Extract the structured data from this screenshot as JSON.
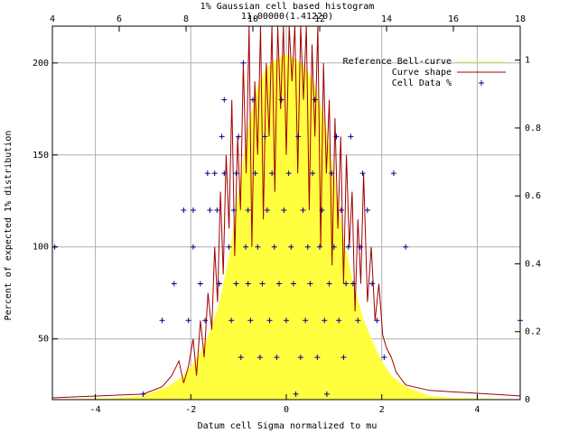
{
  "chart_data": {
    "type": "bar",
    "title": "1% Gaussian cell based histogram",
    "subtitle": "11.00000(1.41220)",
    "xlabel": "Datum cell Sigma normalized to mu",
    "ylabel": "Percent of expected 1% distribution",
    "x_range": [
      -4.9,
      4.9
    ],
    "x_ticks": [
      -4,
      -2,
      0,
      2,
      4
    ],
    "x_tick_labels": [
      "-4",
      "-2",
      "0",
      "2",
      "4"
    ],
    "y_range": [
      17,
      220
    ],
    "y_ticks": [
      50,
      100,
      150,
      200
    ],
    "y_tick_labels": [
      "50",
      "100",
      "150",
      "200"
    ],
    "x2_range": [
      4,
      18
    ],
    "x2_ticks": [
      4,
      6,
      8,
      10,
      12,
      14,
      16,
      18
    ],
    "x2_tick_labels": [
      "4",
      "6",
      "8",
      "10",
      "12",
      "14",
      "16",
      "18"
    ],
    "y2_range": [
      0,
      1.1
    ],
    "y2_ticks": [
      0,
      0.2,
      0.4,
      0.6,
      0.8,
      1
    ],
    "y2_tick_labels": [
      "0",
      "0.2",
      "0.4",
      "0.6",
      "0.8",
      "1"
    ],
    "grid": true,
    "legend_position": "top-right",
    "legend": [
      {
        "name": "Reference Bell-curve",
        "color": "#ffff40",
        "style": "area"
      },
      {
        "name": "Curve shape",
        "color": "#a00000",
        "style": "line"
      },
      {
        "name": "Cell Data %",
        "color": "#000090",
        "style": "plus"
      }
    ],
    "series": [
      {
        "name": "Reference Bell-curve",
        "style": "area",
        "x": [
          -4.9,
          -3.5,
          -3.0,
          -2.5,
          -2.2,
          -2.0,
          -1.8,
          -1.6,
          -1.4,
          -1.2,
          -1.0,
          -0.8,
          -0.6,
          -0.4,
          -0.2,
          0.0,
          0.2,
          0.4,
          0.6,
          0.8,
          1.0,
          1.2,
          1.4,
          1.6,
          1.8,
          2.0,
          2.2,
          2.5,
          3.0,
          3.5,
          4.9
        ],
        "y": [
          17,
          18,
          19,
          24,
          29,
          35,
          43,
          54,
          70,
          95,
          130,
          165,
          188,
          198,
          202,
          205,
          202,
          198,
          188,
          170,
          140,
          105,
          80,
          62,
          49,
          38,
          30,
          24,
          19,
          18,
          17
        ]
      },
      {
        "name": "Curve shape",
        "style": "line",
        "x": [
          -4.9,
          -3.0,
          -2.6,
          -2.4,
          -2.25,
          -2.15,
          -2.05,
          -1.95,
          -1.88,
          -1.8,
          -1.72,
          -1.64,
          -1.56,
          -1.5,
          -1.44,
          -1.38,
          -1.32,
          -1.26,
          -1.2,
          -1.14,
          -1.08,
          -1.02,
          -0.96,
          -0.9,
          -0.84,
          -0.78,
          -0.72,
          -0.66,
          -0.6,
          -0.54,
          -0.48,
          -0.42,
          -0.36,
          -0.3,
          -0.24,
          -0.18,
          -0.12,
          -0.06,
          0.0,
          0.06,
          0.12,
          0.18,
          0.24,
          0.3,
          0.36,
          0.42,
          0.48,
          0.54,
          0.6,
          0.66,
          0.72,
          0.78,
          0.84,
          0.9,
          0.96,
          1.02,
          1.08,
          1.14,
          1.2,
          1.26,
          1.32,
          1.38,
          1.44,
          1.5,
          1.56,
          1.62,
          1.7,
          1.78,
          1.86,
          1.94,
          2.02,
          2.1,
          2.2,
          2.3,
          2.5,
          3.0,
          4.9
        ],
        "y": [
          18,
          20,
          24,
          30,
          38,
          26,
          35,
          50,
          30,
          60,
          40,
          75,
          55,
          100,
          70,
          130,
          85,
          150,
          110,
          180,
          95,
          160,
          120,
          200,
          140,
          225,
          100,
          190,
          150,
          225,
          115,
          200,
          160,
          225,
          130,
          225,
          175,
          225,
          150,
          225,
          190,
          225,
          140,
          225,
          180,
          225,
          120,
          210,
          160,
          225,
          100,
          200,
          140,
          180,
          90,
          170,
          110,
          160,
          80,
          150,
          100,
          130,
          65,
          115,
          80,
          140,
          70,
          100,
          60,
          80,
          52,
          45,
          40,
          32,
          25,
          22,
          19
        ]
      },
      {
        "name": "Cell Data %",
        "style": "plus",
        "points": [
          [
            -4.85,
            100
          ],
          [
            -3.0,
            20
          ],
          [
            -2.6,
            60
          ],
          [
            -2.35,
            80
          ],
          [
            -2.15,
            120
          ],
          [
            -2.05,
            60
          ],
          [
            -1.95,
            100
          ],
          [
            -1.95,
            120
          ],
          [
            -1.8,
            80
          ],
          [
            -1.7,
            60
          ],
          [
            -1.65,
            140
          ],
          [
            -1.6,
            120
          ],
          [
            -1.5,
            140
          ],
          [
            -1.45,
            120
          ],
          [
            -1.4,
            80
          ],
          [
            -1.35,
            160
          ],
          [
            -1.3,
            180
          ],
          [
            -1.3,
            140
          ],
          [
            -1.2,
            100
          ],
          [
            -1.15,
            60
          ],
          [
            -1.1,
            120
          ],
          [
            -1.05,
            140
          ],
          [
            -1.05,
            80
          ],
          [
            -1.0,
            160
          ],
          [
            -0.95,
            40
          ],
          [
            -0.9,
            200
          ],
          [
            -0.85,
            100
          ],
          [
            -0.8,
            80
          ],
          [
            -0.8,
            120
          ],
          [
            -0.75,
            60
          ],
          [
            -0.7,
            180
          ],
          [
            -0.65,
            140
          ],
          [
            -0.6,
            100
          ],
          [
            -0.55,
            40
          ],
          [
            -0.5,
            80
          ],
          [
            -0.45,
            160
          ],
          [
            -0.4,
            120
          ],
          [
            -0.35,
            60
          ],
          [
            -0.3,
            140
          ],
          [
            -0.25,
            100
          ],
          [
            -0.2,
            40
          ],
          [
            -0.15,
            80
          ],
          [
            -0.1,
            180
          ],
          [
            -0.05,
            120
          ],
          [
            0.0,
            60
          ],
          [
            0.05,
            140
          ],
          [
            0.1,
            100
          ],
          [
            0.15,
            80
          ],
          [
            0.2,
            20
          ],
          [
            0.25,
            160
          ],
          [
            0.3,
            40
          ],
          [
            0.35,
            120
          ],
          [
            0.4,
            60
          ],
          [
            0.45,
            100
          ],
          [
            0.5,
            80
          ],
          [
            0.55,
            140
          ],
          [
            0.6,
            180
          ],
          [
            0.65,
            40
          ],
          [
            0.7,
            100
          ],
          [
            0.75,
            120
          ],
          [
            0.8,
            60
          ],
          [
            0.85,
            20
          ],
          [
            0.9,
            80
          ],
          [
            0.95,
            140
          ],
          [
            1.0,
            100
          ],
          [
            1.05,
            160
          ],
          [
            1.1,
            60
          ],
          [
            1.15,
            120
          ],
          [
            1.2,
            40
          ],
          [
            1.25,
            80
          ],
          [
            1.3,
            100
          ],
          [
            1.35,
            160
          ],
          [
            1.4,
            80
          ],
          [
            1.5,
            60
          ],
          [
            1.55,
            100
          ],
          [
            1.6,
            140
          ],
          [
            1.7,
            120
          ],
          [
            1.8,
            80
          ],
          [
            1.9,
            60
          ],
          [
            2.05,
            40
          ],
          [
            2.25,
            140
          ],
          [
            2.5,
            100
          ],
          [
            4.9,
            60
          ]
        ]
      }
    ]
  }
}
